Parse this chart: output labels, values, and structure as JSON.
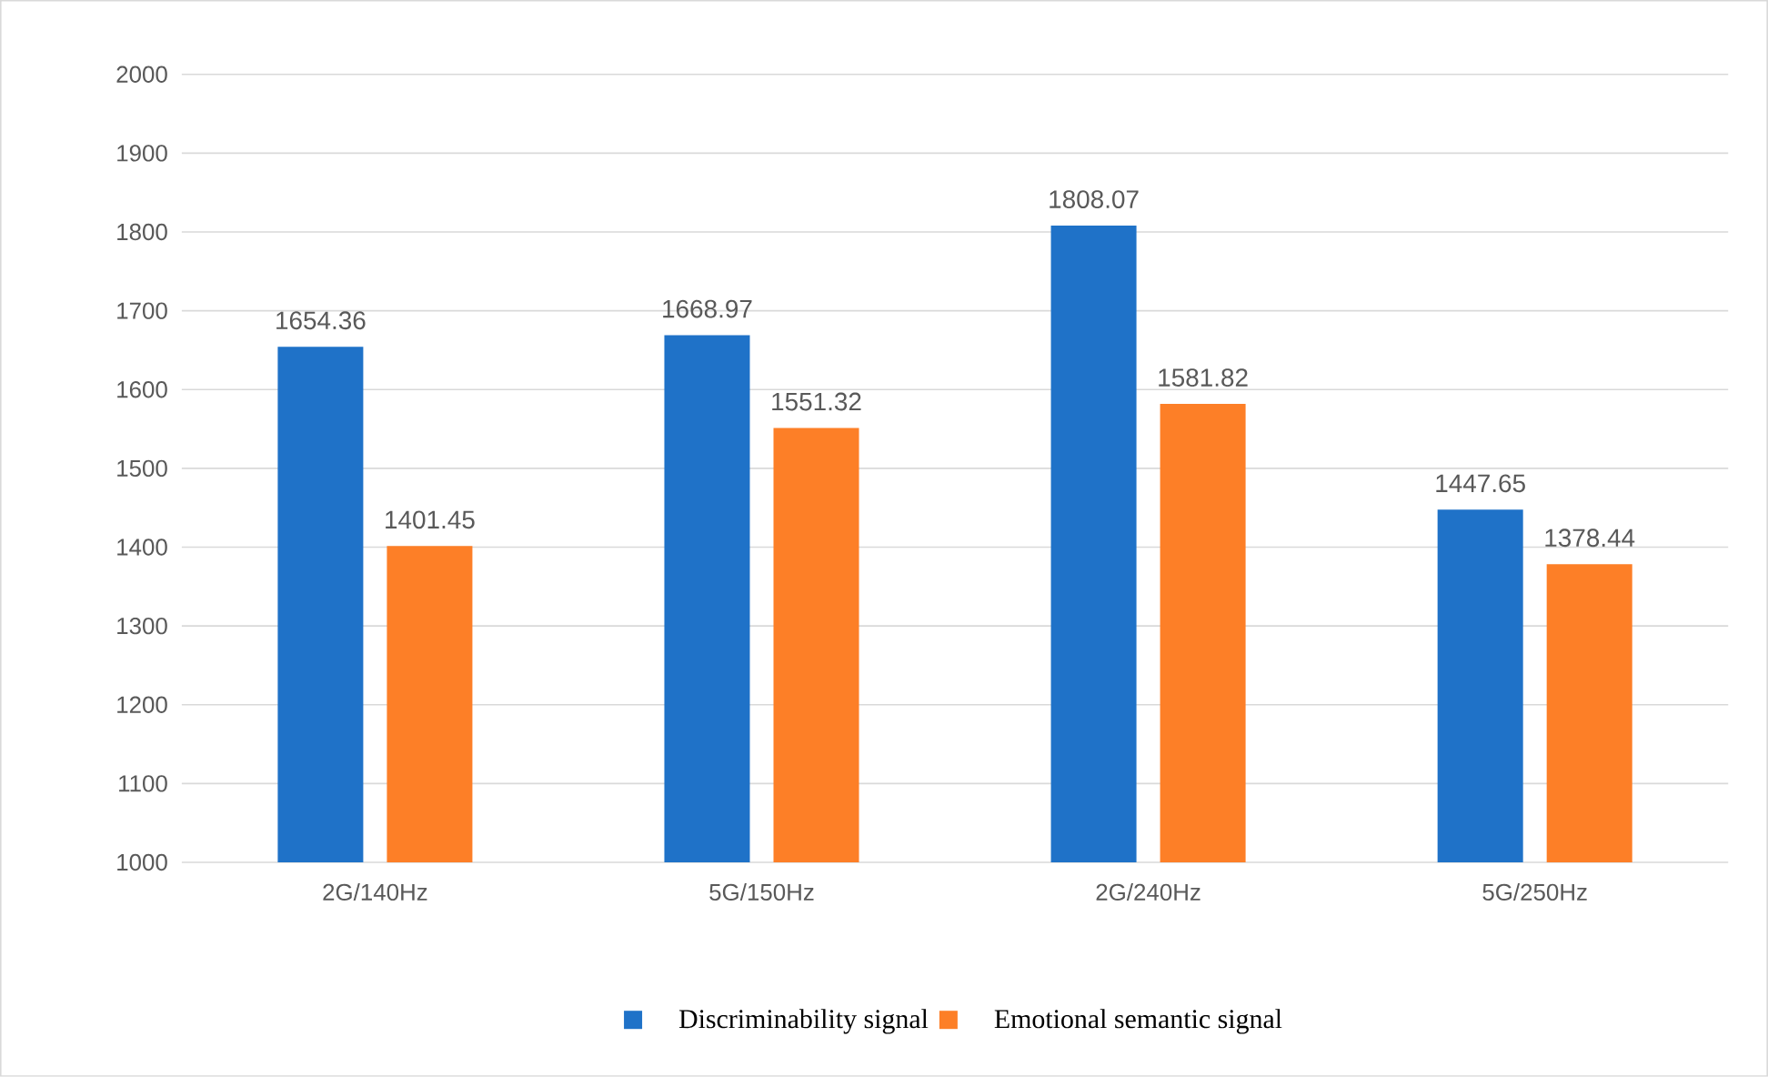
{
  "chart_data": {
    "type": "bar",
    "categories": [
      "2G/140Hz",
      "5G/150Hz",
      "2G/240Hz",
      "5G/250Hz"
    ],
    "series": [
      {
        "name": "Discriminability signal",
        "color": "#1f72c8",
        "values": [
          1654.36,
          1668.97,
          1808.07,
          1447.65
        ]
      },
      {
        "name": "Emotional semantic signal",
        "color": "#fd7f27",
        "values": [
          1401.45,
          1551.32,
          1581.82,
          1378.44
        ]
      }
    ],
    "ylim": [
      1000,
      2000
    ],
    "yticks": [
      1000,
      1100,
      1200,
      1300,
      1400,
      1500,
      1600,
      1700,
      1800,
      1900,
      2000
    ],
    "grid": "y",
    "legend": "bottom",
    "data_labels": true
  }
}
